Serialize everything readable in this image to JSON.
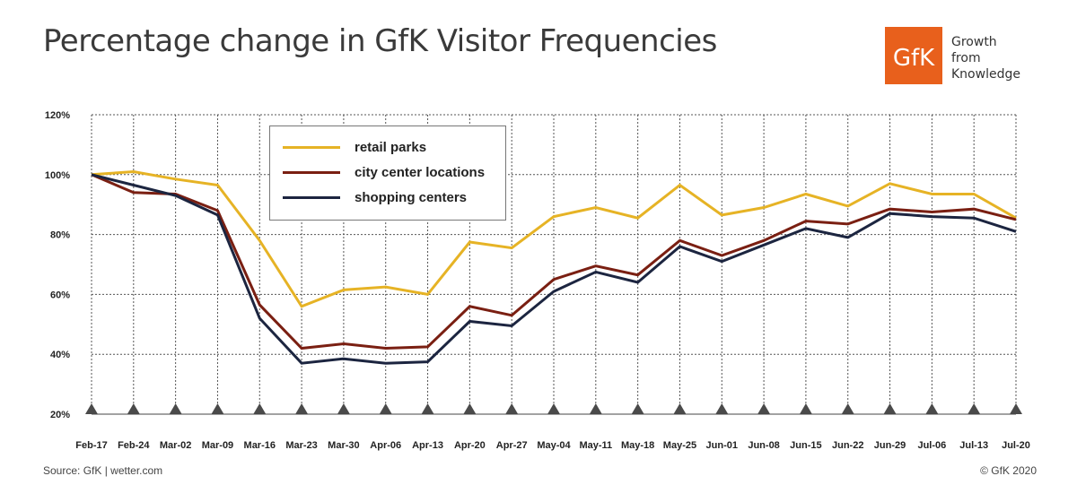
{
  "header": {
    "title": "Percentage change in GfK Visitor Frequencies",
    "logo_text": "GfK",
    "tagline": [
      "Growth",
      "from",
      "Knowledge"
    ]
  },
  "footer": {
    "source": "Source: GfK | wetter.com",
    "copyright": "© GfK 2020"
  },
  "colors": {
    "retail_parks": "#e6b325",
    "city_center": "#7a1f12",
    "shopping_centers": "#1c2540",
    "logo": "#e8601c"
  },
  "chart_data": {
    "type": "line",
    "title": "Percentage change in GfK Visitor Frequencies",
    "xlabel": "",
    "ylabel": "",
    "ylim": [
      20,
      120
    ],
    "yticks": [
      "20%",
      "40%",
      "60%",
      "80%",
      "100%",
      "120%"
    ],
    "grid": true,
    "legend_position": "top-left",
    "categories": [
      "Feb-17",
      "Feb-24",
      "Mar-02",
      "Mar-09",
      "Mar-16",
      "Mar-23",
      "Mar-30",
      "Apr-06",
      "Apr-13",
      "Apr-20",
      "Apr-27",
      "May-04",
      "May-11",
      "May-18",
      "May-25",
      "Jun-01",
      "Jun-08",
      "Jun-15",
      "Jun-22",
      "Jun-29",
      "Jul-06",
      "Jul-13",
      "Jul-20"
    ],
    "series": [
      {
        "name": "retail parks",
        "color": "#e6b325",
        "values": [
          100,
          101,
          98.5,
          96.5,
          78,
          56,
          61.5,
          62.5,
          60,
          77.5,
          75.5,
          86,
          89,
          85.5,
          96.5,
          86.5,
          89,
          93.5,
          89.5,
          97,
          93.5,
          93.5,
          85.5
        ]
      },
      {
        "name": "city center locations",
        "color": "#7a1f12",
        "values": [
          100,
          94,
          93.5,
          88,
          56.5,
          42,
          43.5,
          42,
          42.5,
          56,
          53,
          65,
          69.5,
          66.5,
          78,
          73,
          78,
          84.5,
          83.5,
          88.5,
          87.5,
          88.5,
          85
        ]
      },
      {
        "name": "shopping centers",
        "color": "#1c2540",
        "values": [
          100,
          96.5,
          93,
          86.5,
          52,
          37,
          38.5,
          37,
          37.5,
          51,
          49.5,
          61,
          67.5,
          64,
          76,
          71,
          76.5,
          82,
          79,
          87,
          86,
          85.5,
          81
        ]
      }
    ]
  }
}
